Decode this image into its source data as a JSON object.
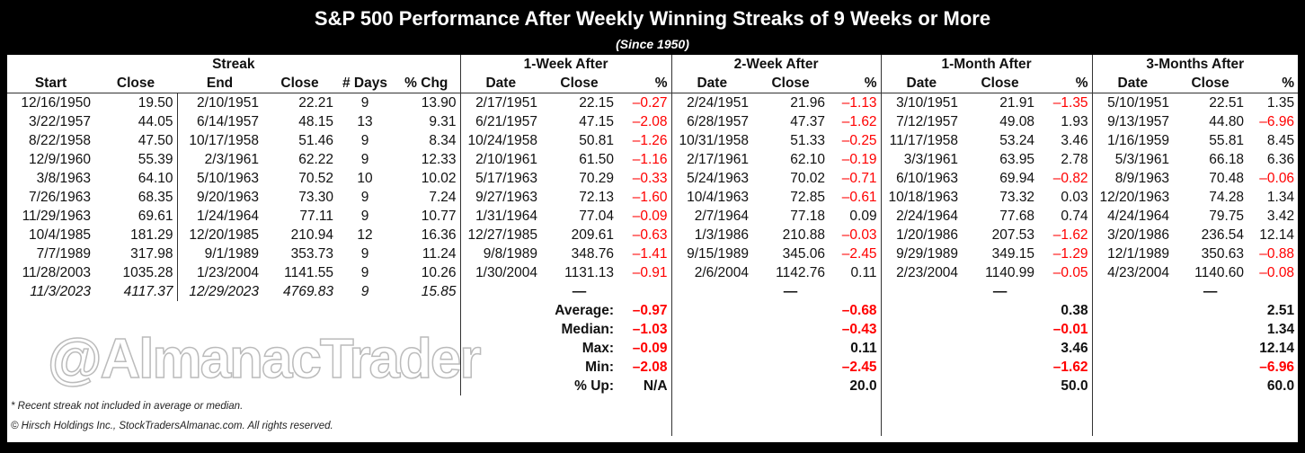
{
  "title": "S&P 500 Performance After Weekly Winning Streaks of 9 Weeks or More",
  "subtitle": "(Since 1950)",
  "chart_data": {
    "type": "table",
    "groups": [
      "Streak",
      "1-Week After",
      "2-Week After",
      "1-Month After",
      "3-Months After"
    ],
    "streak_headers": [
      "Start",
      "Close",
      "End",
      "Close",
      "# Days",
      "% Chg"
    ],
    "after_headers": [
      "Date",
      "Close",
      "%"
    ],
    "rows": [
      {
        "streak": [
          "12/16/1950",
          "19.50",
          "2/10/1951",
          "22.21",
          "9",
          "13.90"
        ],
        "w1": [
          "2/17/1951",
          "22.15",
          "–0.27"
        ],
        "w2": [
          "2/24/1951",
          "21.96",
          "–1.13"
        ],
        "m1": [
          "3/10/1951",
          "21.91",
          "–1.35"
        ],
        "m3": [
          "5/10/1951",
          "22.51",
          "1.35"
        ]
      },
      {
        "streak": [
          "3/22/1957",
          "44.05",
          "6/14/1957",
          "48.15",
          "13",
          "9.31"
        ],
        "w1": [
          "6/21/1957",
          "47.15",
          "–2.08"
        ],
        "w2": [
          "6/28/1957",
          "47.37",
          "–1.62"
        ],
        "m1": [
          "7/12/1957",
          "49.08",
          "1.93"
        ],
        "m3": [
          "9/13/1957",
          "44.80",
          "–6.96"
        ]
      },
      {
        "streak": [
          "8/22/1958",
          "47.50",
          "10/17/1958",
          "51.46",
          "9",
          "8.34"
        ],
        "w1": [
          "10/24/1958",
          "50.81",
          "–1.26"
        ],
        "w2": [
          "10/31/1958",
          "51.33",
          "–0.25"
        ],
        "m1": [
          "11/17/1958",
          "53.24",
          "3.46"
        ],
        "m3": [
          "1/16/1959",
          "55.81",
          "8.45"
        ]
      },
      {
        "streak": [
          "12/9/1960",
          "55.39",
          "2/3/1961",
          "62.22",
          "9",
          "12.33"
        ],
        "w1": [
          "2/10/1961",
          "61.50",
          "–1.16"
        ],
        "w2": [
          "2/17/1961",
          "62.10",
          "–0.19"
        ],
        "m1": [
          "3/3/1961",
          "63.95",
          "2.78"
        ],
        "m3": [
          "5/3/1961",
          "66.18",
          "6.36"
        ]
      },
      {
        "streak": [
          "3/8/1963",
          "64.10",
          "5/10/1963",
          "70.52",
          "10",
          "10.02"
        ],
        "w1": [
          "5/17/1963",
          "70.29",
          "–0.33"
        ],
        "w2": [
          "5/24/1963",
          "70.02",
          "–0.71"
        ],
        "m1": [
          "6/10/1963",
          "69.94",
          "–0.82"
        ],
        "m3": [
          "8/9/1963",
          "70.48",
          "–0.06"
        ]
      },
      {
        "streak": [
          "7/26/1963",
          "68.35",
          "9/20/1963",
          "73.30",
          "9",
          "7.24"
        ],
        "w1": [
          "9/27/1963",
          "72.13",
          "–1.60"
        ],
        "w2": [
          "10/4/1963",
          "72.85",
          "–0.61"
        ],
        "m1": [
          "10/18/1963",
          "73.32",
          "0.03"
        ],
        "m3": [
          "12/20/1963",
          "74.28",
          "1.34"
        ]
      },
      {
        "streak": [
          "11/29/1963",
          "69.61",
          "1/24/1964",
          "77.11",
          "9",
          "10.77"
        ],
        "w1": [
          "1/31/1964",
          "77.04",
          "–0.09"
        ],
        "w2": [
          "2/7/1964",
          "77.18",
          "0.09"
        ],
        "m1": [
          "2/24/1964",
          "77.68",
          "0.74"
        ],
        "m3": [
          "4/24/1964",
          "79.75",
          "3.42"
        ]
      },
      {
        "streak": [
          "10/4/1985",
          "181.29",
          "12/20/1985",
          "210.94",
          "12",
          "16.36"
        ],
        "w1": [
          "12/27/1985",
          "209.61",
          "–0.63"
        ],
        "w2": [
          "1/3/1986",
          "210.88",
          "–0.03"
        ],
        "m1": [
          "1/20/1986",
          "207.53",
          "–1.62"
        ],
        "m3": [
          "3/20/1986",
          "236.54",
          "12.14"
        ]
      },
      {
        "streak": [
          "7/7/1989",
          "317.98",
          "9/1/1989",
          "353.73",
          "9",
          "11.24"
        ],
        "w1": [
          "9/8/1989",
          "348.76",
          "–1.41"
        ],
        "w2": [
          "9/15/1989",
          "345.06",
          "–2.45"
        ],
        "m1": [
          "9/29/1989",
          "349.15",
          "–1.29"
        ],
        "m3": [
          "12/1/1989",
          "350.63",
          "–0.88"
        ]
      },
      {
        "streak": [
          "11/28/2003",
          "1035.28",
          "1/23/2004",
          "1141.55",
          "9",
          "10.26"
        ],
        "w1": [
          "1/30/2004",
          "1131.13",
          "–0.91"
        ],
        "w2": [
          "2/6/2004",
          "1142.76",
          "0.11"
        ],
        "m1": [
          "2/23/2004",
          "1140.99",
          "–0.05"
        ],
        "m3": [
          "4/23/2004",
          "1140.60",
          "–0.08"
        ]
      }
    ],
    "recent": {
      "streak": [
        "11/3/2023",
        "4117.37",
        "12/29/2023",
        "4769.83",
        "9",
        "15.85"
      ],
      "placeholder": "—"
    },
    "stats": [
      {
        "label": "Average:",
        "w1": "–0.97",
        "w2": "–0.68",
        "m1": "0.38",
        "m3": "2.51"
      },
      {
        "label": "Median:",
        "w1": "–1.03",
        "w2": "–0.43",
        "m1": "–0.01",
        "m3": "1.34"
      },
      {
        "label": "Max:",
        "w1": "–0.09",
        "w2": "0.11",
        "m1": "3.46",
        "m3": "12.14"
      },
      {
        "label": "Min:",
        "w1": "–2.08",
        "w2": "–2.45",
        "m1": "–1.62",
        "m3": "–6.96"
      },
      {
        "label": "% Up:",
        "w1": "N/A",
        "w2": "20.0",
        "m1": "50.0",
        "m3": "60.0"
      }
    ],
    "negative_color": "#ff0000"
  },
  "watermark": "@AlmanacTrader",
  "footnotes": [
    "* Recent streak not included in average or median.",
    "© Hirsch Holdings Inc., StockTradersAlmanac.com. All rights reserved."
  ]
}
